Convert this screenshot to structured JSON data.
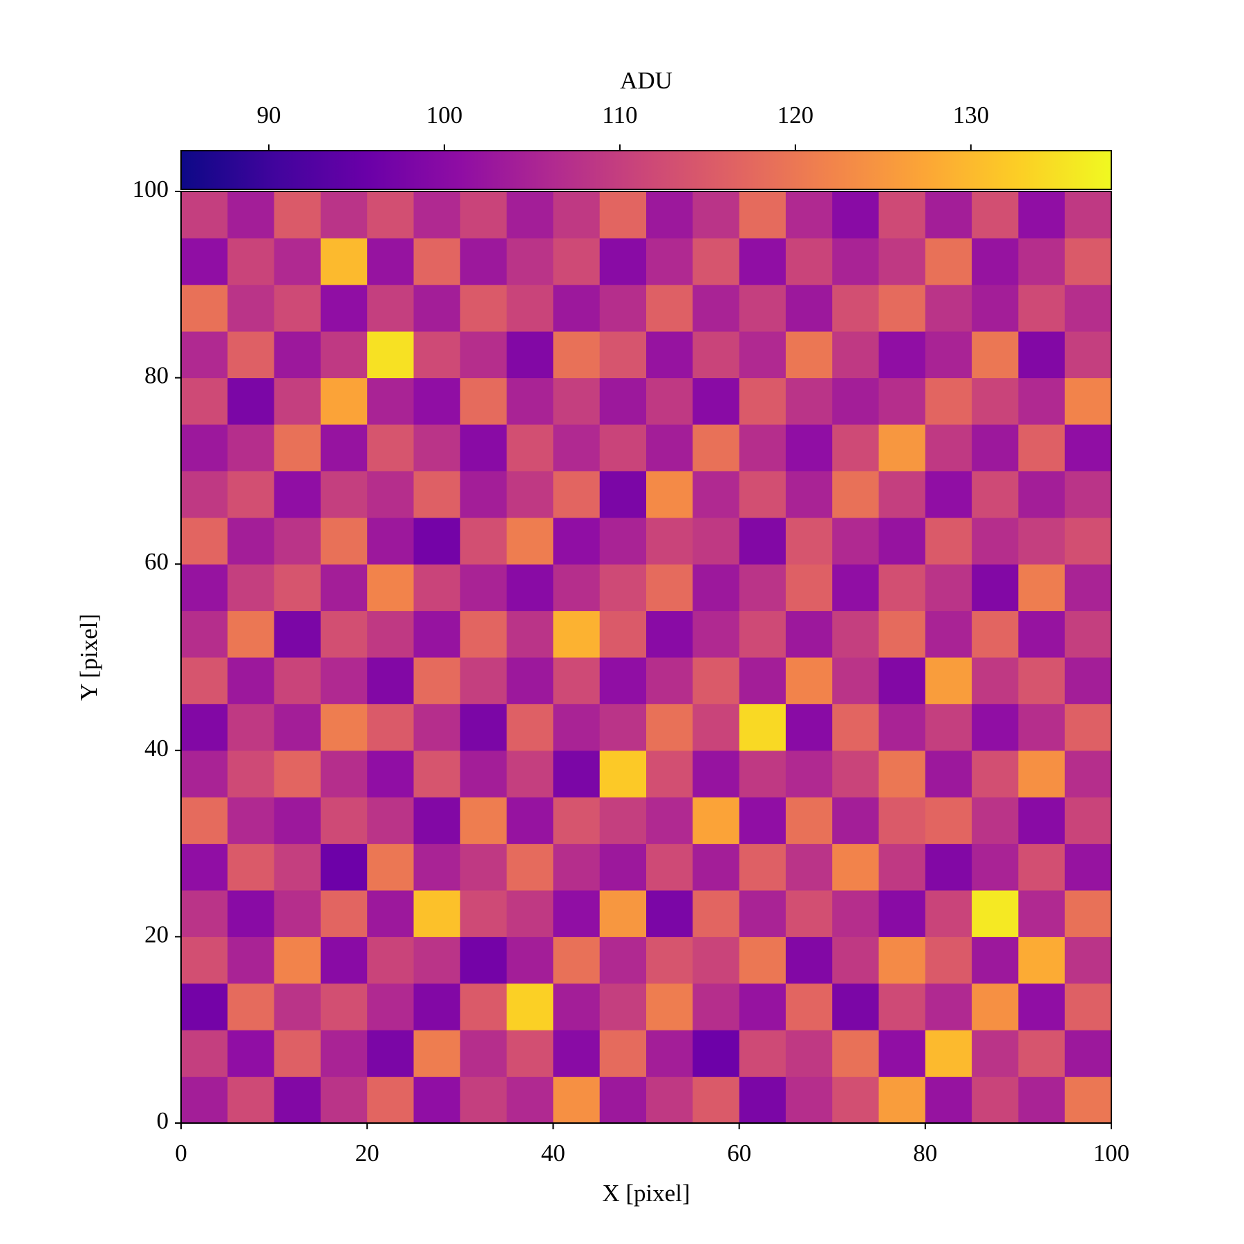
{
  "chart_data": {
    "type": "heatmap",
    "xlabel": "X [pixel]",
    "ylabel": "Y [pixel]",
    "xlim": [
      0,
      100
    ],
    "ylim": [
      0,
      100
    ],
    "xticks": [
      0,
      20,
      40,
      60,
      80,
      100
    ],
    "yticks": [
      0,
      20,
      40,
      60,
      80,
      100
    ],
    "colormap": "plasma",
    "colorbar": {
      "label": "ADU",
      "lim": [
        85,
        138
      ],
      "ticks": [
        90,
        100,
        110,
        120,
        130
      ]
    },
    "z": [
      [
        104,
        112,
        99,
        108,
        117,
        101,
        110,
        106,
        124,
        103,
        109,
        115,
        98,
        107,
        113,
        126,
        102,
        111,
        105,
        120
      ],
      [
        110,
        101,
        116,
        105,
        98,
        121,
        107,
        113,
        100,
        118,
        104,
        96,
        112,
        109,
        119,
        101,
        130,
        108,
        114,
        103
      ],
      [
        97,
        118,
        108,
        113,
        106,
        99,
        115,
        133,
        104,
        110,
        121,
        107,
        102,
        117,
        98,
        112,
        106,
        124,
        101,
        116
      ],
      [
        113,
        105,
        122,
        100,
        111,
        108,
        97,
        104,
        119,
        106,
        114,
        111,
        120,
        99,
        109,
        123,
        115,
        103,
        128,
        108
      ],
      [
        108,
        100,
        107,
        117,
        103,
        131,
        112,
        109,
        101,
        125,
        98,
        117,
        105,
        113,
        107,
        100,
        111,
        136,
        106,
        119
      ],
      [
        101,
        115,
        110,
        96,
        120,
        105,
        109,
        118,
        107,
        103,
        112,
        104,
        116,
        108,
        122,
        109,
        99,
        105,
        113,
        102
      ],
      [
        118,
        106,
        103,
        112,
        108,
        99,
        121,
        102,
        114,
        110,
        106,
        127,
        101,
        119,
        104,
        115,
        117,
        108,
        100,
        111
      ],
      [
        105,
        112,
        117,
        107,
        101,
        114,
        104,
        110,
        98,
        132,
        113,
        102,
        109,
        106,
        111,
        120,
        103,
        113,
        124,
        107
      ],
      [
        99,
        109,
        104,
        121,
        115,
        107,
        98,
        116,
        105,
        108,
        119,
        111,
        134,
        100,
        117,
        105,
        110,
        101,
        107,
        116
      ],
      [
        114,
        103,
        111,
        106,
        99,
        118,
        110,
        103,
        112,
        101,
        107,
        115,
        104,
        122,
        108,
        99,
        126,
        109,
        114,
        104
      ],
      [
        107,
        120,
        98,
        113,
        109,
        102,
        117,
        108,
        129,
        115,
        100,
        106,
        112,
        103,
        110,
        118,
        105,
        117,
        102,
        110
      ],
      [
        102,
        110,
        114,
        104,
        122,
        111,
        105,
        100,
        107,
        112,
        118,
        103,
        108,
        116,
        101,
        113,
        108,
        99,
        121,
        105
      ],
      [
        117,
        104,
        108,
        119,
        103,
        97,
        113,
        121,
        101,
        105,
        111,
        109,
        99,
        114,
        106,
        102,
        115,
        107,
        110,
        113
      ],
      [
        109,
        113,
        101,
        110,
        107,
        116,
        104,
        109,
        117,
        98,
        123,
        106,
        113,
        105,
        119,
        110,
        101,
        112,
        104,
        108
      ],
      [
        103,
        107,
        119,
        102,
        114,
        108,
        100,
        113,
        106,
        111,
        104,
        119,
        107,
        101,
        112,
        125,
        109,
        103,
        116,
        101
      ],
      [
        112,
        98,
        110,
        127,
        105,
        101,
        118,
        105,
        110,
        103,
        109,
        100,
        115,
        108,
        104,
        107,
        117,
        111,
        106,
        122
      ],
      [
        106,
        116,
        103,
        109,
        135,
        112,
        107,
        99,
        119,
        114,
        102,
        111,
        106,
        120,
        109,
        101,
        105,
        120,
        99,
        110
      ],
      [
        119,
        108,
        112,
        101,
        110,
        104,
        115,
        111,
        103,
        107,
        116,
        105,
        110,
        103,
        113,
        118,
        108,
        104,
        112,
        107
      ],
      [
        101,
        111,
        106,
        130,
        102,
        117,
        103,
        108,
        112,
        100,
        106,
        114,
        101,
        111,
        105,
        109,
        119,
        102,
        107,
        115
      ],
      [
        110,
        104,
        115,
        108,
        113,
        106,
        111,
        104,
        109,
        117,
        103,
        108,
        118,
        106,
        100,
        112,
        104,
        113,
        101,
        109
      ]
    ]
  }
}
